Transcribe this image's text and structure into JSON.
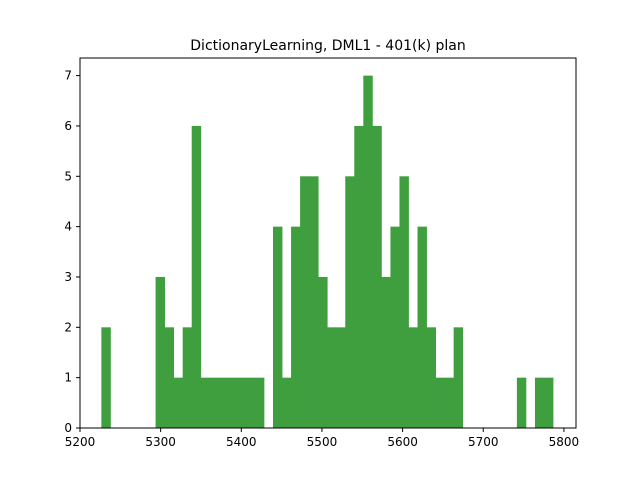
{
  "chart_data": {
    "type": "bar",
    "title": "DictionaryLearning, DML1 - 401(k) plan",
    "xlabel": "",
    "ylabel": "",
    "xlim": [
      5200,
      5815
    ],
    "ylim": [
      0,
      7.35
    ],
    "xticks": [
      5200,
      5300,
      5400,
      5500,
      5600,
      5700,
      5800
    ],
    "yticks": [
      0,
      1,
      2,
      3,
      4,
      5,
      6,
      7
    ],
    "bin_width": 11.2,
    "bins": [
      {
        "x": 5226.5,
        "value": 2
      },
      {
        "x": 5293.7,
        "value": 3
      },
      {
        "x": 5304.9,
        "value": 2
      },
      {
        "x": 5316.1,
        "value": 1
      },
      {
        "x": 5327.3,
        "value": 2
      },
      {
        "x": 5338.5,
        "value": 6
      },
      {
        "x": 5349.7,
        "value": 1
      },
      {
        "x": 5360.9,
        "value": 1
      },
      {
        "x": 5372.1,
        "value": 1
      },
      {
        "x": 5383.3,
        "value": 1
      },
      {
        "x": 5394.5,
        "value": 1
      },
      {
        "x": 5405.7,
        "value": 1
      },
      {
        "x": 5416.9,
        "value": 1
      },
      {
        "x": 5439.3,
        "value": 4
      },
      {
        "x": 5450.5,
        "value": 1
      },
      {
        "x": 5461.7,
        "value": 4
      },
      {
        "x": 5472.9,
        "value": 5
      },
      {
        "x": 5484.1,
        "value": 5
      },
      {
        "x": 5495.3,
        "value": 3
      },
      {
        "x": 5506.5,
        "value": 2
      },
      {
        "x": 5517.7,
        "value": 2
      },
      {
        "x": 5528.9,
        "value": 5
      },
      {
        "x": 5540.1,
        "value": 6
      },
      {
        "x": 5551.3,
        "value": 7
      },
      {
        "x": 5562.5,
        "value": 6
      },
      {
        "x": 5573.7,
        "value": 3
      },
      {
        "x": 5584.9,
        "value": 4
      },
      {
        "x": 5596.1,
        "value": 5
      },
      {
        "x": 5607.3,
        "value": 2
      },
      {
        "x": 5618.5,
        "value": 4
      },
      {
        "x": 5629.7,
        "value": 2
      },
      {
        "x": 5640.9,
        "value": 1
      },
      {
        "x": 5652.1,
        "value": 1
      },
      {
        "x": 5663.3,
        "value": 2
      },
      {
        "x": 5741.7,
        "value": 1
      },
      {
        "x": 5764.1,
        "value": 1
      },
      {
        "x": 5775.3,
        "value": 1
      }
    ],
    "color": "#3f9f3f",
    "grid": false,
    "legend": "none"
  }
}
